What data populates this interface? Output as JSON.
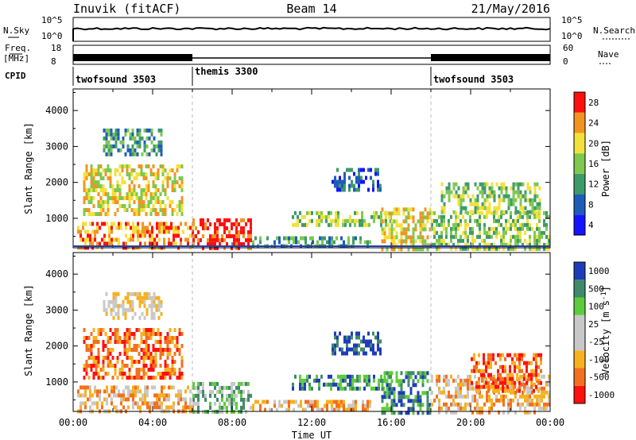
{
  "header": {
    "station": "Inuvik (fitACF)",
    "beam": "Beam 14",
    "date": "21/May/2016"
  },
  "strip": {
    "nsky_label": "N.Sky",
    "nsearch_label": "N.Search",
    "nsky_ticks": [
      "10^5",
      "10^0"
    ],
    "nsearch_ticks": [
      "10^5",
      "10^0"
    ],
    "freq_label_1": "Freq.",
    "freq_label_2": "[MHz]",
    "freq_ticks": [
      "18",
      "8"
    ],
    "nave_label": "Nave",
    "nave_ticks": [
      "60",
      "0"
    ],
    "cpid_label": "CPID",
    "cpid_segments": [
      {
        "label": "twofsound 3503",
        "start_h": 0,
        "end_h": 6
      },
      {
        "label": "themis 3300",
        "start_h": 6,
        "end_h": 18
      },
      {
        "label": "twofsound 3503",
        "start_h": 18,
        "end_h": 24
      }
    ]
  },
  "chart_data": [
    {
      "type": "heatmap",
      "panel": "power",
      "xlabel": "",
      "ylabel": "Slant Range [km]",
      "xlim": [
        0,
        24
      ],
      "ylim": [
        180,
        4600
      ],
      "yticks": [
        1000,
        2000,
        3000,
        4000
      ],
      "xticks": [
        0,
        2,
        4,
        6,
        8,
        10,
        12,
        14,
        16,
        18,
        20,
        22,
        24
      ],
      "colorbar": {
        "label": "Power [dB]",
        "levels": [
          {
            "label": "4",
            "color": "#1414ff"
          },
          {
            "label": "8",
            "color": "#1f5cb8"
          },
          {
            "label": "12",
            "color": "#3f9a6a"
          },
          {
            "label": "16",
            "color": "#7ec850"
          },
          {
            "label": "20",
            "color": "#f4e03a"
          },
          {
            "label": "24",
            "color": "#f29420"
          },
          {
            "label": "28",
            "color": "#ff1010"
          }
        ],
        "tick_labels": [
          "4",
          "8",
          "12",
          "16",
          "20",
          "24",
          "28"
        ]
      },
      "echo_regions": [
        {
          "t0": 0.2,
          "t1": 6.0,
          "r0": 180,
          "r1": 900,
          "level": 5
        },
        {
          "t0": 0.5,
          "t1": 5.5,
          "r0": 1100,
          "r1": 2500,
          "level": 4
        },
        {
          "t0": 1.5,
          "t1": 4.5,
          "r0": 2800,
          "r1": 3500,
          "level": 2
        },
        {
          "t0": 6.0,
          "t1": 9.0,
          "r0": 180,
          "r1": 1000,
          "level": 6
        },
        {
          "t0": 9.0,
          "t1": 15.0,
          "r0": 180,
          "r1": 500,
          "level": 2
        },
        {
          "t0": 11.0,
          "t1": 16.0,
          "r0": 800,
          "r1": 1200,
          "level": 3
        },
        {
          "t0": 13.0,
          "t1": 15.5,
          "r0": 1800,
          "r1": 2400,
          "level": 1
        },
        {
          "t0": 15.5,
          "t1": 18.0,
          "r0": 180,
          "r1": 1300,
          "level": 4
        },
        {
          "t0": 18.0,
          "t1": 24.0,
          "r0": 180,
          "r1": 1200,
          "level": 3
        },
        {
          "t0": 18.5,
          "t1": 23.5,
          "r0": 1200,
          "r1": 2000,
          "level": 3
        }
      ]
    },
    {
      "type": "heatmap",
      "panel": "velocity",
      "xlabel": "Time UT",
      "ylabel": "Slant Range [km]",
      "xlim": [
        0,
        24
      ],
      "ylim": [
        180,
        4600
      ],
      "yticks": [
        1000,
        2000,
        3000,
        4000
      ],
      "xticks": [
        0,
        2,
        4,
        6,
        8,
        10,
        12,
        14,
        16,
        18,
        20,
        22,
        24
      ],
      "xtick_labels": [
        "00:00",
        "04:00",
        "08:00",
        "12:00",
        "16:00",
        "20:00",
        "00:00"
      ],
      "colorbar": {
        "label": "Velocity [m s^-1]",
        "levels": [
          {
            "label": "-1000",
            "color": "#ff1010"
          },
          {
            "label": "-500",
            "color": "#f27020"
          },
          {
            "label": "-100",
            "color": "#f7b020"
          },
          {
            "label": "-25",
            "color": "#c8c8c8"
          },
          {
            "label": "25",
            "color": "#c8c8c8"
          },
          {
            "label": "100",
            "color": "#5ccc3c"
          },
          {
            "label": "500",
            "color": "#3f8a6a"
          },
          {
            "label": "1000",
            "color": "#1f3cb8"
          }
        ],
        "tick_labels": [
          "1000",
          "500",
          "100",
          "25",
          "-25",
          "-100",
          "-500",
          "-1000"
        ]
      },
      "echo_regions": [
        {
          "t0": 0.2,
          "t1": 6.0,
          "r0": 180,
          "r1": 900,
          "level": 2
        },
        {
          "t0": 0.5,
          "t1": 5.5,
          "r0": 1100,
          "r1": 2500,
          "level": 1
        },
        {
          "t0": 1.5,
          "t1": 4.5,
          "r0": 2800,
          "r1": 3500,
          "level": 3
        },
        {
          "t0": 6.0,
          "t1": 9.0,
          "r0": 180,
          "r1": 1000,
          "level": 5
        },
        {
          "t0": 9.0,
          "t1": 15.0,
          "r0": 180,
          "r1": 500,
          "level": 2
        },
        {
          "t0": 11.0,
          "t1": 16.0,
          "r0": 800,
          "r1": 1200,
          "level": 6
        },
        {
          "t0": 13.0,
          "t1": 15.5,
          "r0": 1800,
          "r1": 2400,
          "level": 7
        },
        {
          "t0": 15.5,
          "t1": 18.0,
          "r0": 180,
          "r1": 1300,
          "level": 6
        },
        {
          "t0": 18.0,
          "t1": 24.0,
          "r0": 180,
          "r1": 1200,
          "level": 2
        },
        {
          "t0": 20.0,
          "t1": 23.5,
          "r0": 800,
          "r1": 1800,
          "level": 1
        }
      ]
    }
  ]
}
